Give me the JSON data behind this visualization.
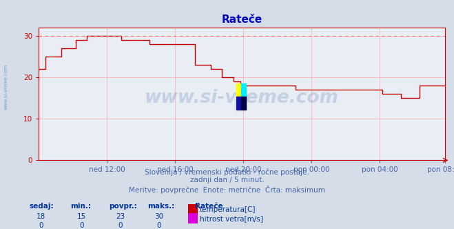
{
  "title": "Rateče",
  "title_color": "#0000cc",
  "bg_color": "#d4dde8",
  "plot_bg_color": "#e8eef4",
  "grid_color": "#ffaaaa",
  "axis_color": "#cc0000",
  "line_color": "#cc0000",
  "dashed_line_color": "#ff6666",
  "dashed_line_y": 30,
  "ylim": [
    0,
    32
  ],
  "yticks": [
    0,
    10,
    20,
    30
  ],
  "xlabel_color": "#4466aa",
  "xtick_labels": [
    "ned 12:00",
    "ned 16:00",
    "ned 20:00",
    "pon 00:00",
    "pon 04:00",
    "pon 08:00"
  ],
  "footer_line1": "Slovenija / vremenski podatki - ročne postaje.",
  "footer_line2": "zadnji dan / 5 minut.",
  "footer_line3": "Meritve: povprečne  Enote: metrične  Črta: maksimum",
  "footer_color": "#4466aa",
  "legend_title": "Rateče",
  "legend_color": "#003399",
  "legend_items": [
    {
      "label": "temperatura[C]",
      "color": "#cc0000"
    },
    {
      "label": "hitrost vetra[m/s]",
      "color": "#dd00dd"
    }
  ],
  "stats_headers": [
    "sedaj:",
    "min.:",
    "povpr.:",
    "maks.:"
  ],
  "stats_temp": [
    18,
    15,
    23,
    30
  ],
  "stats_wind": [
    0,
    0,
    0,
    0
  ],
  "temp_data_y": [
    22,
    22,
    22,
    22,
    22,
    25,
    25,
    25,
    25,
    25,
    25,
    25,
    25,
    25,
    25,
    25,
    27,
    27,
    27,
    27,
    27,
    27,
    27,
    27,
    27,
    27,
    29,
    29,
    29,
    29,
    29,
    29,
    29,
    29,
    30,
    30,
    30,
    30,
    30,
    30,
    30,
    30,
    30,
    30,
    30,
    30,
    30,
    30,
    30,
    30,
    30,
    30,
    30,
    30,
    30,
    30,
    30,
    30,
    29,
    29,
    29,
    29,
    29,
    29,
    29,
    29,
    29,
    29,
    29,
    29,
    29,
    29,
    29,
    29,
    29,
    29,
    29,
    29,
    28,
    28,
    28,
    28,
    28,
    28,
    28,
    28,
    28,
    28,
    28,
    28,
    28,
    28,
    28,
    28,
    28,
    28,
    28,
    28,
    28,
    28,
    28,
    28,
    28,
    28,
    28,
    28,
    28,
    28,
    28,
    28,
    23,
    23,
    23,
    23,
    23,
    23,
    23,
    23,
    23,
    23,
    23,
    22,
    22,
    22,
    22,
    22,
    22,
    22,
    22,
    20,
    20,
    20,
    20,
    20,
    20,
    20,
    20,
    19,
    19,
    19,
    19,
    19,
    18,
    18,
    18,
    18,
    18,
    18,
    18,
    18,
    18,
    18,
    18,
    18,
    18,
    18,
    18,
    18,
    18,
    18,
    18,
    18,
    18,
    18,
    18,
    18,
    18,
    18,
    18,
    18,
    18,
    18,
    18,
    18,
    18,
    18,
    18,
    18,
    18,
    18,
    18,
    17,
    17,
    17,
    17,
    17,
    17,
    17,
    17,
    17,
    17,
    17,
    17,
    17,
    17,
    17,
    17,
    17,
    17,
    17,
    17,
    17,
    17,
    17,
    17,
    17,
    17,
    17,
    17,
    17,
    17,
    17,
    17,
    17,
    17,
    17,
    17,
    17,
    17,
    17,
    17,
    17,
    17,
    17,
    17,
    17,
    17,
    17,
    17,
    17,
    17,
    17,
    17,
    17,
    17,
    17,
    17,
    17,
    17,
    17,
    17,
    17,
    16,
    16,
    16,
    16,
    16,
    16,
    16,
    16,
    16,
    16,
    16,
    16,
    16,
    15,
    15,
    15,
    15,
    15,
    15,
    15,
    15,
    15,
    15,
    15,
    15,
    15,
    18,
    18,
    18,
    18,
    18,
    18,
    18,
    18,
    18,
    18,
    18,
    18,
    18,
    18,
    18,
    18,
    18,
    18,
    18
  ]
}
